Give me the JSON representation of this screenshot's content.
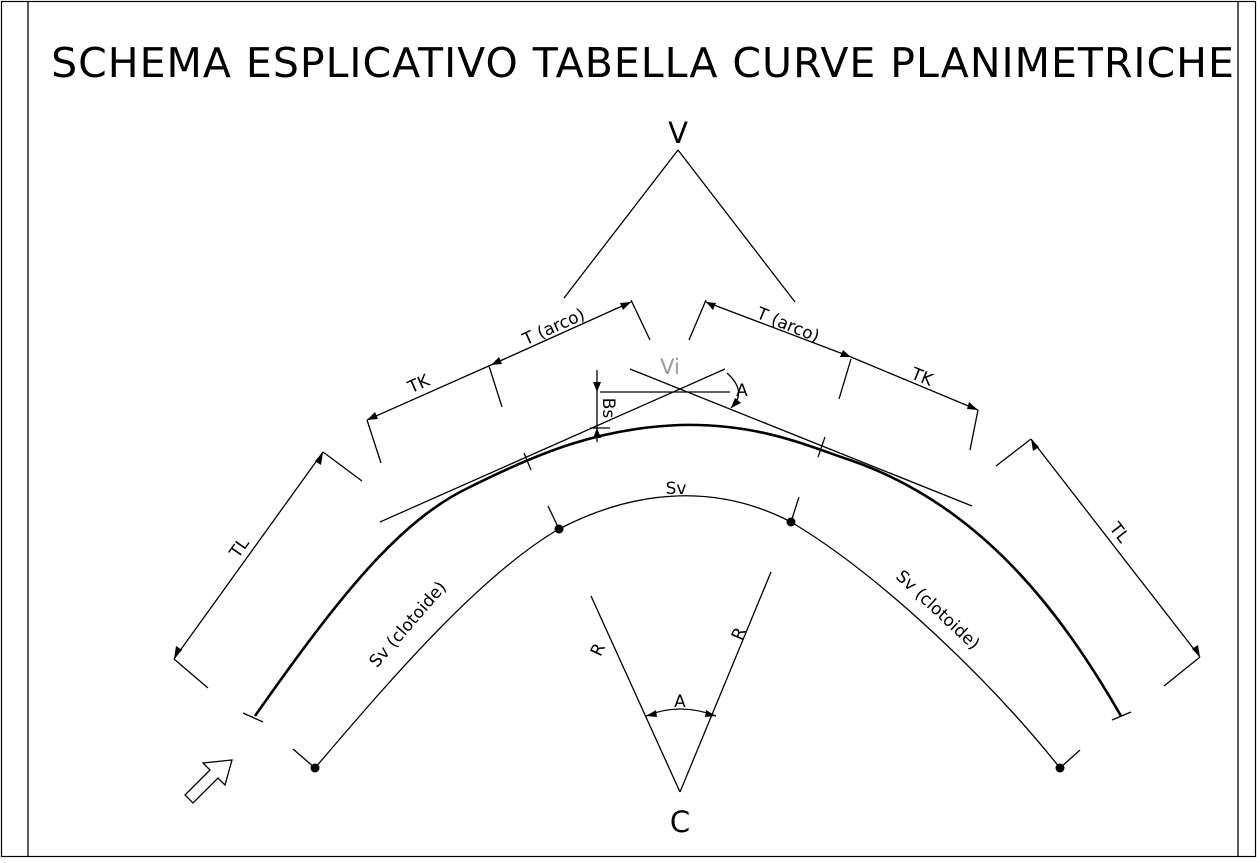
{
  "title": "SCHEMA ESPLICATIVO TABELLA CURVE PLANIMETRICHE",
  "labels": {
    "vertex": "V",
    "vertex_inner": "Vi",
    "center": "C",
    "tangent_arc_left": "T (arco)",
    "tangent_arc_right": "T (arco)",
    "tk_left": "TK",
    "tk_right": "TK",
    "tl_left": "TL",
    "tl_right": "TL",
    "bisector": "Bs",
    "angle_vertex": "A",
    "angle_center": "A",
    "radius_left": "R",
    "radius_right": "R",
    "sv_arc": "Sv",
    "sv_clothoid_left": "Sv (clotoide)",
    "sv_clothoid_right": "Sv (clotoide)"
  },
  "colors": {
    "line": "#000000",
    "vi_label": "#9a9a9a",
    "background": "#ffffff"
  },
  "icons": {
    "direction_arrow": "hollow-arrow-up-right"
  }
}
